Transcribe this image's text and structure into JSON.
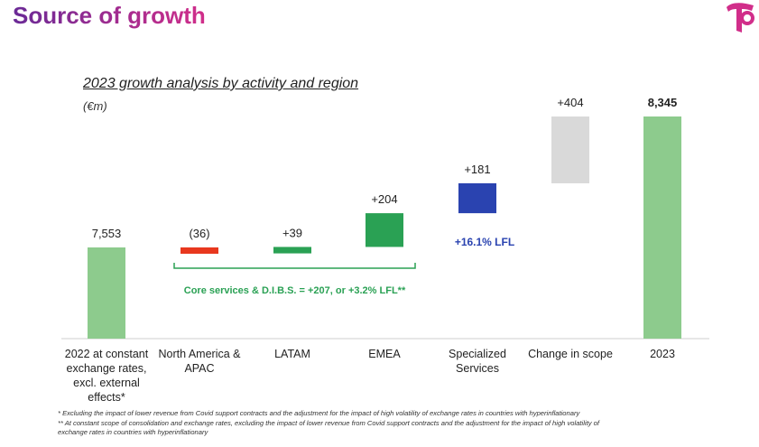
{
  "page": {
    "title": "Source of growth",
    "logo_color": "#d12e8a"
  },
  "chart_data": {
    "type": "waterfall",
    "title": "2023 growth analysis by activity and region",
    "unit": "(€m)",
    "categories": [
      "2022 at constant exchange rates, excl. external effects*",
      "North America & APAC",
      "LATAM",
      "EMEA",
      "Specialized Services",
      "Change in scope",
      "2023"
    ],
    "category_lines": [
      [
        "2022 at constant",
        "exchange rates,",
        "excl. external",
        "effects*"
      ],
      [
        "North America &",
        "APAC"
      ],
      [
        "LATAM"
      ],
      [
        "EMEA"
      ],
      [
        "Specialized",
        "Services"
      ],
      [
        "Change in scope"
      ],
      [
        "2023"
      ]
    ],
    "steps": [
      {
        "kind": "total",
        "value": 7553,
        "label": "7,553",
        "color": "#8dcb8d"
      },
      {
        "kind": "delta",
        "value": -36,
        "label": "(36)",
        "color": "#e8381e"
      },
      {
        "kind": "delta",
        "value": 39,
        "label": "+39",
        "color": "#2aa154"
      },
      {
        "kind": "delta",
        "value": 204,
        "label": "+204",
        "color": "#2aa154"
      },
      {
        "kind": "delta",
        "value": 181,
        "label": "+181",
        "color": "#2a43b0"
      },
      {
        "kind": "delta",
        "value": 404,
        "label": "+404",
        "color": "#d9d9d9"
      },
      {
        "kind": "total",
        "value": 8345,
        "label": "8,345",
        "color": "#8dcb8d"
      }
    ],
    "annotations": {
      "core_services": {
        "text": "Core services & D.I.B.S. = +207, or +3.2% LFL**",
        "color": "#2aa154",
        "span": [
          1,
          3
        ]
      },
      "specialized_lfl": {
        "text": "+16.1% LFL",
        "color": "#2a43b0",
        "under": 4
      }
    },
    "footnotes": [
      "* Excluding the impact of lower revenue from Covid support contracts and the adjustment for the impact of high volatility of exchange rates in countries with hyperinflationary",
      "** At constant scope of consolidation and exchange rates, excluding the impact of lower revenue from Covid support contracts and the adjustment for the impact of high volatility of",
      "exchange rates in countries with hyperinflationary"
    ]
  }
}
